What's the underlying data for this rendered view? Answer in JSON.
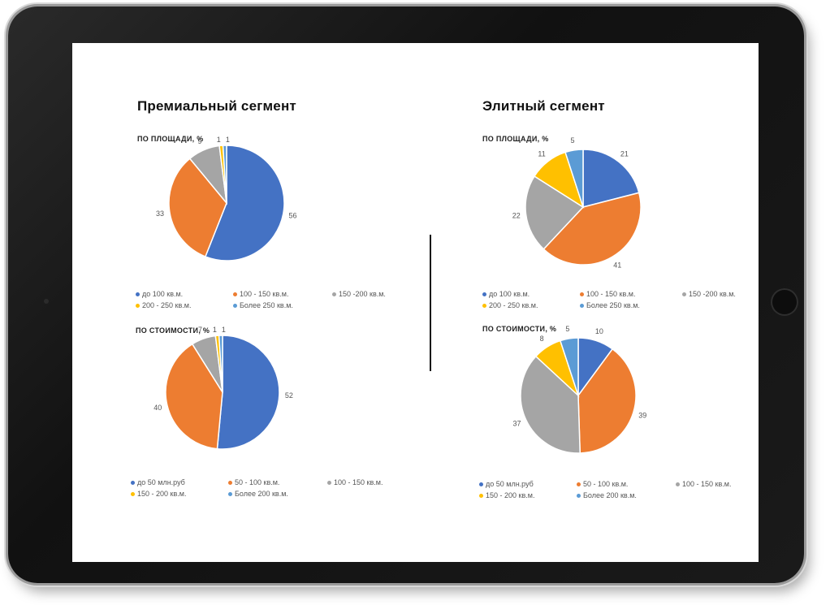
{
  "colors": {
    "blue": "#4472C4",
    "orange": "#ED7D31",
    "gray": "#A5A5A5",
    "yellow": "#FFC000",
    "lightblue": "#5B9BD5"
  },
  "segments": [
    {
      "title": "Премиальный сегмент",
      "area": {
        "subtitle": "ПО ПЛОЩАДИ, %",
        "legend": [
          "до 100 кв.м.",
          "100 - 150 кв.м.",
          "150 -200 кв.м.",
          "200 - 250 кв.м.",
          "Более 250 кв.м."
        ]
      },
      "cost": {
        "subtitle": "ПО СТОИМОСТИ, %",
        "legend": [
          "до 50 млн.руб",
          "50 - 100 кв.м.",
          "100 - 150 кв.м.",
          "150 - 200 кв.м.",
          "Более 200 кв.м."
        ]
      }
    },
    {
      "title": "Элитный сегмент",
      "area": {
        "subtitle": "ПО ПЛОЩАДИ, %",
        "legend": [
          "до 100 кв.м.",
          "100 - 150 кв.м.",
          "150 -200 кв.м.",
          "200 - 250 кв.м.",
          "Более 250 кв.м."
        ]
      },
      "cost": {
        "subtitle": "ПО СТОИМОСТИ, %",
        "legend": [
          "до 50 млн.руб",
          "50 - 100 кв.м.",
          "100 - 150 кв.м.",
          "150 - 200 кв.м.",
          "Более 200 кв.м."
        ]
      }
    }
  ],
  "chart_data": [
    {
      "type": "pie",
      "title": "ПО ПЛОЩАДИ, %",
      "categories": [
        "до 100 кв.м.",
        "100 - 150 кв.м.",
        "150 -200 кв.м.",
        "200 - 250 кв.м.",
        "Более 250 кв.м."
      ],
      "values": [
        56,
        33,
        9,
        1,
        1
      ],
      "legend": "bottom"
    },
    {
      "type": "pie",
      "title": "ПО СТОИМОСТИ, %",
      "categories": [
        "до 50 млн.руб",
        "50 - 100 кв.м.",
        "100 - 150 кв.м.",
        "150 - 200 кв.м.",
        "Более 200 кв.м."
      ],
      "values": [
        52,
        40,
        7,
        1,
        1
      ],
      "legend": "bottom"
    },
    {
      "type": "pie",
      "title": "ПО ПЛОЩАДИ, %",
      "categories": [
        "до 100 кв.м.",
        "100 - 150 кв.м.",
        "150 -200 кв.м.",
        "200 - 250 кв.м.",
        "Более 250 кв.м."
      ],
      "values": [
        21,
        41,
        22,
        11,
        5
      ],
      "legend": "bottom"
    },
    {
      "type": "pie",
      "title": "ПО СТОИМОСТИ, %",
      "categories": [
        "до 50 млн.руб",
        "50 - 100 кв.м.",
        "100 - 150 кв.м.",
        "150 - 200 кв.м.",
        "Более 200 кв.м."
      ],
      "values": [
        10,
        39,
        37,
        8,
        5
      ],
      "legend": "bottom"
    }
  ]
}
